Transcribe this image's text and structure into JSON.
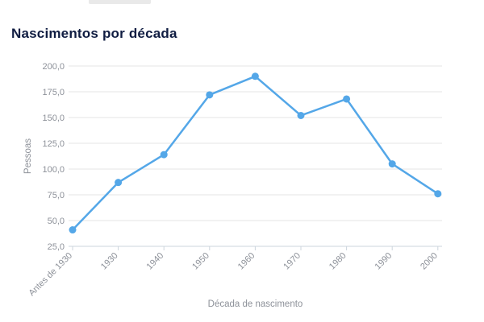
{
  "page": {
    "top_bar_color": "#e9e9e9",
    "background": "#ffffff"
  },
  "chart_data": {
    "type": "line",
    "title": "Nascimentos por década",
    "xlabel": "Década de nascimento",
    "ylabel": "Pessoas",
    "categories": [
      "Antes de 1930",
      "1930",
      "1940",
      "1950",
      "1960",
      "1970",
      "1980",
      "1990",
      "2000"
    ],
    "values": [
      41,
      87,
      114,
      172,
      190,
      152,
      168,
      105,
      76
    ],
    "y_ticks": [
      25,
      50,
      75,
      100,
      125,
      150,
      175,
      200
    ],
    "y_tick_labels": [
      "25,0",
      "50,0",
      "75,0",
      "100,0",
      "125,0",
      "150,0",
      "175,0",
      "200,0"
    ],
    "ylim": [
      25,
      200
    ],
    "grid": true,
    "legend": false,
    "colors": {
      "line": "#54a7e8",
      "marker": "#54a7e8",
      "title": "#101d42",
      "tick_label": "#8d9199",
      "grid": "#e6e6e6",
      "axis": "#ccd5dd"
    }
  }
}
